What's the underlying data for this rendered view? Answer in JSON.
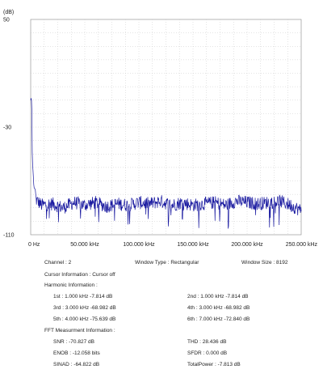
{
  "chart_data": {
    "type": "line",
    "ylabel": "(dB)",
    "ylim": [
      -110,
      50
    ],
    "xlim": [
      0,
      250000
    ],
    "y_ticks": [
      {
        "value": 50,
        "label": "50"
      },
      {
        "value": -30,
        "label": "-30"
      },
      {
        "value": -110,
        "label": "-110"
      }
    ],
    "x_ticks": [
      {
        "value": 0,
        "label": "0 Hz"
      },
      {
        "value": 50000,
        "label": "50.000 kHz"
      },
      {
        "value": 100000,
        "label": "100.000 kHz"
      },
      {
        "value": 150000,
        "label": "150.000 kHz"
      },
      {
        "value": 200000,
        "label": "200.000 kHz"
      },
      {
        "value": 250000,
        "label": "250.000 kHz"
      }
    ],
    "grid": true,
    "line_color": "#1a1aa0",
    "series": [
      {
        "x": [
          0,
          500,
          1000,
          1500,
          2000,
          3000,
          4000,
          5000,
          10000,
          20000,
          30000,
          40000,
          50000,
          60000,
          70000,
          80000,
          90000,
          100000,
          110000,
          120000,
          130000,
          140000,
          150000,
          160000,
          170000,
          180000,
          190000,
          200000,
          210000,
          220000,
          230000,
          240000,
          250000
        ],
        "y": [
          -10,
          -8,
          -12,
          -55,
          -60,
          -75,
          -76,
          -84,
          -88,
          -87,
          -90,
          -86,
          -88,
          -86,
          -89,
          -87,
          -88,
          -86,
          -87,
          -85,
          -88,
          -86,
          -88,
          -87,
          -86,
          -88,
          -85,
          -86,
          -87,
          -86,
          -85,
          -88,
          -92
        ]
      }
    ]
  },
  "info": {
    "channel": "Channel : 2",
    "window_type": "Window Type : Rectangular",
    "window_size": "Window Size : 8192",
    "cursor_info": "Cursor Information :  Cursor off",
    "harmonic_title": "Harmonic Information :",
    "harmonics": [
      {
        "left": "1st : 1.000 kHz  -7.814 dB",
        "right": "2nd : 1.000 kHz  -7.814 dB"
      },
      {
        "left": "3rd : 3.000 kHz  -68.982 dB",
        "right": "4th : 3.000 kHz  -68.982 dB"
      },
      {
        "left": "5th : 4.000 kHz  -75.639 dB",
        "right": "6th : 7.000 kHz  -72.840 dB"
      }
    ],
    "fft_title": "FFT Measurment Information :",
    "fft": [
      {
        "left": "SNR : -70.827 dB",
        "right": "THD : 28.436 dB"
      },
      {
        "left": "ENOB : -12.058 bits",
        "right": "SFDR :  0.000 dB"
      },
      {
        "left": "SINAD : -64.822 dB",
        "right": "TotalPower : -7.813 dB"
      }
    ]
  }
}
